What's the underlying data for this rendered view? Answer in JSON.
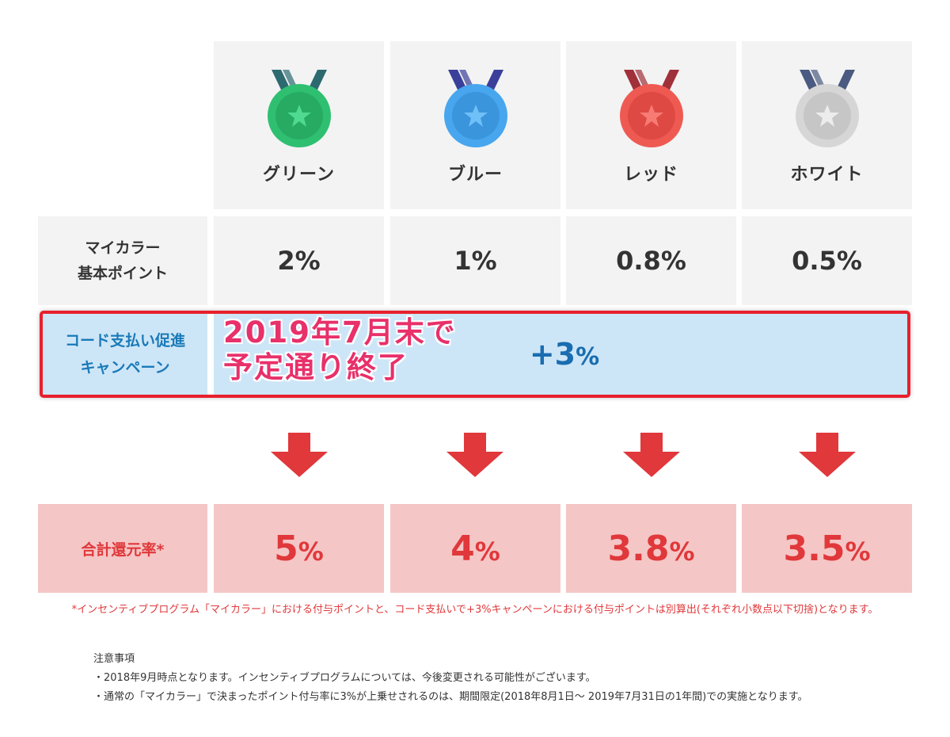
{
  "ranks": [
    {
      "name": "グリーン",
      "base": "2%",
      "total_num": "5",
      "color": "#2fbf71",
      "ribbon": "#2c6a70"
    },
    {
      "name": "ブルー",
      "base": "1%",
      "total_num": "4",
      "color": "#47a6ee",
      "ribbon": "#3a3f9a"
    },
    {
      "name": "レッド",
      "base": "0.8%",
      "total_num": "3.8",
      "color": "#ee5a52",
      "ribbon": "#a0303a"
    },
    {
      "name": "ホワイト",
      "base": "0.5%",
      "total_num": "3.5",
      "color": "#d6d6d6",
      "ribbon": "#4a5a80"
    }
  ],
  "base_label_line1": "マイカラー",
  "base_label_line2": "基本ポイント",
  "campaign_label_line1": "コード支払い促進",
  "campaign_label_line2": "キャンペーン",
  "campaign_plus": "+3",
  "campaign_pct": "%",
  "overlay_line1": "2019年7月末で",
  "overlay_line2": "予定通り終了",
  "total_label": "合計還元率*",
  "total_pct": "%",
  "footnote": "*インセンティブプログラム「マイカラー」における付与ポイントと、コード支払いで+3%キャンペーンにおける付与ポイントは別算出(それぞれ小数点以下切捨)となります。",
  "notes_title": "注意事項",
  "notes": [
    "・2018年9月時点となります。インセンティブプログラムについては、今後変更される可能性がございます。",
    "・通常の「マイカラー」で決まったポイント付与率に3%が上乗せされるのは、期間限定(2018年8月1日〜 2019年7月31日の1年間)での実施となります。"
  ],
  "colors": {
    "accent_red": "#e0383b",
    "campaign_blue": "#1a7ab8",
    "highlight_border": "#e8202d",
    "overlay_pink": "#e8306a"
  }
}
